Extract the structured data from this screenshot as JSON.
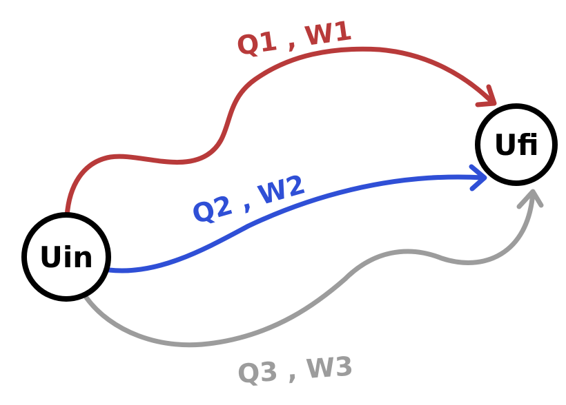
{
  "diagram": {
    "nodes": {
      "initial": {
        "label": "Uin"
      },
      "final": {
        "label": "Ufi"
      }
    },
    "paths": [
      {
        "id": "path-1",
        "label": "Q1 , W1",
        "color": "#b83a3a"
      },
      {
        "id": "path-2",
        "label": "Q2 , W2",
        "color": "#2f4fd6"
      },
      {
        "id": "path-3",
        "label": "Q3 , W3",
        "color": "#9c9c9c"
      }
    ]
  }
}
